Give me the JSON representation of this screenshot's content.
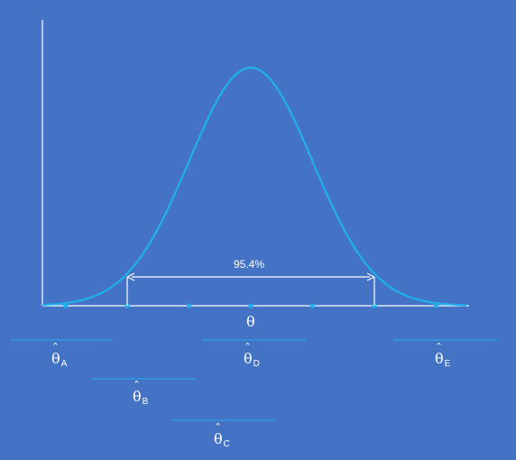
{
  "annotation": {
    "interval_label": "95.4%"
  },
  "axis": {
    "x_symbol": "θ"
  },
  "colors": {
    "background": "#4472c4",
    "curve": "#1fb0ee",
    "axis": "#ffffff",
    "estimator_line": "#1fb0ee"
  },
  "estimators": [
    {
      "symbol": "θ",
      "subscript": "A"
    },
    {
      "symbol": "θ",
      "subscript": "B"
    },
    {
      "symbol": "θ",
      "subscript": "C"
    },
    {
      "symbol": "θ",
      "subscript": "D"
    },
    {
      "symbol": "θ",
      "subscript": "E"
    }
  ]
}
